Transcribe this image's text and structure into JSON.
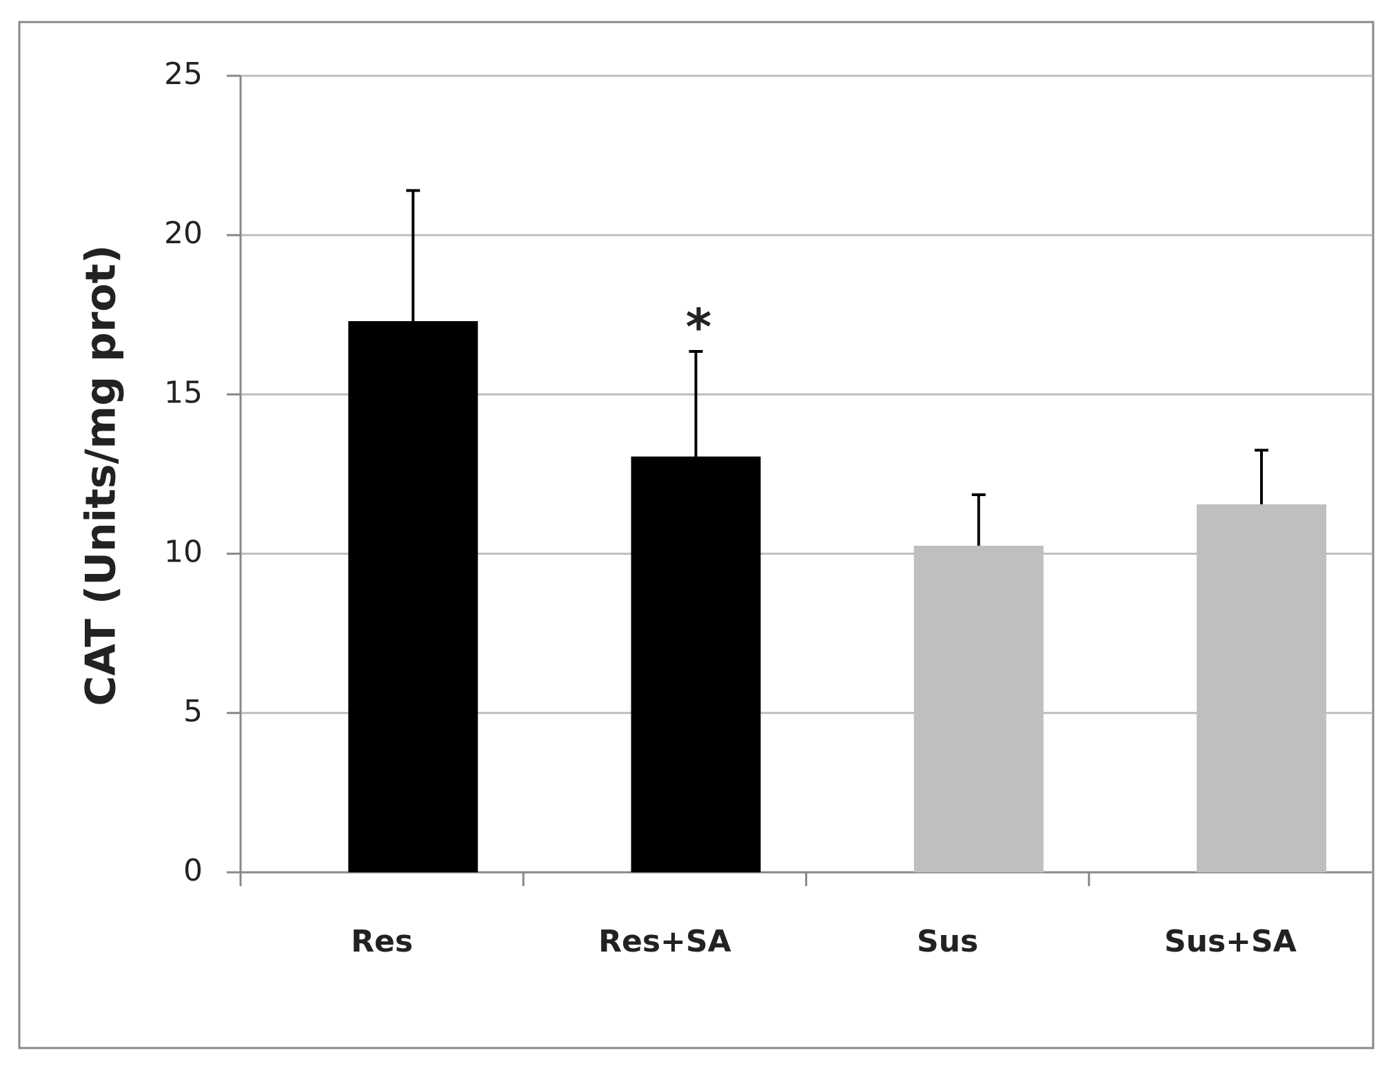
{
  "chart_data": {
    "type": "bar",
    "y_label": "CAT  (Units/mg prot)",
    "categories": [
      "Res",
      "Res+SA",
      "Sus",
      "Sus+SA"
    ],
    "values": [
      17.3,
      13.05,
      10.25,
      11.55
    ],
    "errors": [
      4.1,
      3.3,
      1.6,
      1.7
    ],
    "colors": [
      "#000000",
      "#000000",
      "#bfbfbf",
      "#bfbfbf"
    ],
    "annotations": [
      {
        "text": "*",
        "x": "Res+SA"
      }
    ],
    "ylim": [
      0,
      25
    ],
    "yticks": [
      0,
      5,
      10,
      15,
      20,
      25
    ],
    "grid": true
  }
}
